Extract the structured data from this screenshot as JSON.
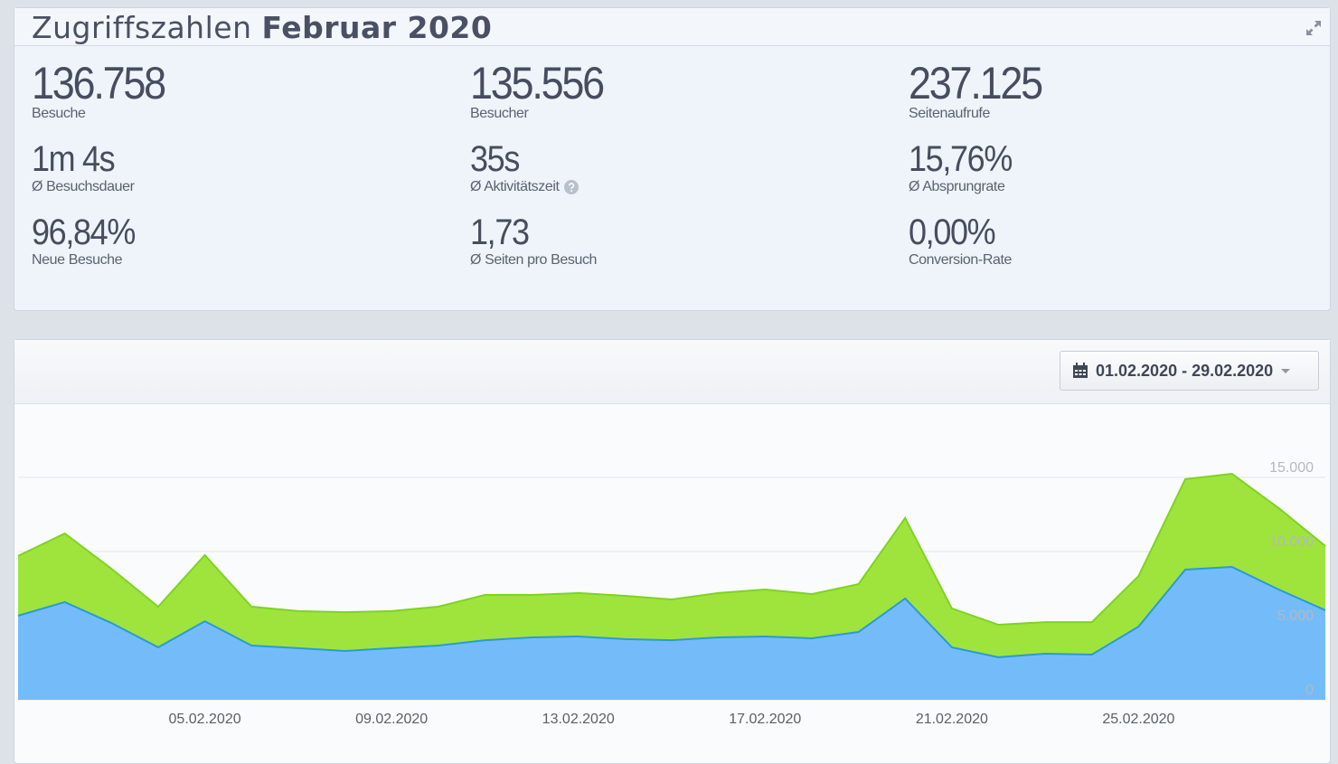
{
  "header": {
    "title": "Zugriffszahlen",
    "title_bold": "Februar 2020"
  },
  "stats": [
    {
      "value": "136.758",
      "label": "Besuche"
    },
    {
      "value": "135.556",
      "label": "Besucher"
    },
    {
      "value": "237.125",
      "label": "Seitenaufrufe"
    },
    {
      "value": "1m 4s",
      "label": "Ø Besuchsdauer"
    },
    {
      "value": "35s",
      "label": "Ø Aktivitätszeit"
    },
    {
      "value": "15,76%",
      "label": "Ø Absprungrate"
    },
    {
      "value": "96,84%",
      "label": "Neue Besuche"
    },
    {
      "value": "1,73",
      "label": "Ø Seiten pro Besuch"
    },
    {
      "value": "0,00%",
      "label": "Conversion-Rate"
    }
  ],
  "date_range": "01.02.2020 - 29.02.2020",
  "chart_data": {
    "type": "area",
    "categories": [
      null,
      null,
      null,
      null,
      "05.02.2020",
      null,
      null,
      null,
      "09.02.2020",
      null,
      null,
      null,
      "13.02.2020",
      null,
      null,
      null,
      "17.02.2020",
      null,
      null,
      null,
      "21.02.2020",
      null,
      null,
      null,
      "25.02.2020",
      null,
      null,
      null,
      null
    ],
    "series": [
      {
        "color": "#9fe43c",
        "values": [
          9700,
          11220,
          8840,
          6280,
          9760,
          6280,
          5980,
          5910,
          5980,
          6280,
          7070,
          7070,
          7200,
          7010,
          6770,
          7200,
          7440,
          7130,
          7800,
          12260,
          6160,
          5060,
          5240,
          5240,
          8350,
          14880,
          15240,
          12930,
          10370
        ]
      },
      {
        "color": "#74bcf9",
        "values": [
          5670,
          6590,
          5180,
          3540,
          5300,
          3660,
          3480,
          3290,
          3480,
          3660,
          4020,
          4210,
          4270,
          4090,
          4020,
          4210,
          4270,
          4150,
          4570,
          6830,
          3540,
          2870,
          3110,
          3050,
          4940,
          8780,
          8960,
          7440,
          6040
        ]
      }
    ],
    "ylim": [
      0,
      20000
    ],
    "yticks": [
      0,
      {
        "value": 5000,
        "label": "5.000"
      },
      {
        "value": 10000,
        "label": "10.000"
      },
      {
        "value": 15000,
        "label": "15.000"
      }
    ],
    "grid": true
  }
}
